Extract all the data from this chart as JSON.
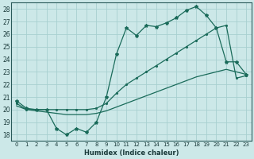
{
  "xlabel": "Humidex (Indice chaleur)",
  "bg_color": "#cce8e8",
  "grid_color": "#a8d0d0",
  "line_color": "#1a6b5a",
  "xlim": [
    -0.5,
    23.5
  ],
  "ylim": [
    17.5,
    28.5
  ],
  "yticks": [
    18,
    19,
    20,
    21,
    22,
    23,
    24,
    25,
    26,
    27,
    28
  ],
  "xticks": [
    0,
    1,
    2,
    3,
    4,
    5,
    6,
    7,
    8,
    9,
    10,
    11,
    12,
    13,
    14,
    15,
    16,
    17,
    18,
    19,
    20,
    21,
    22,
    23
  ],
  "line_wavy_x": [
    0,
    1,
    2,
    3,
    4,
    5,
    6,
    7,
    8,
    9,
    10,
    11,
    12,
    13,
    14,
    15,
    16,
    17,
    18,
    19,
    20,
    21,
    22,
    23
  ],
  "line_wavy_y": [
    20.7,
    20.1,
    20.0,
    20.0,
    18.5,
    18.0,
    18.5,
    18.2,
    19.0,
    21.0,
    24.4,
    26.5,
    25.9,
    26.7,
    26.6,
    26.9,
    27.3,
    27.9,
    28.2,
    27.5,
    26.5,
    23.8,
    23.8,
    22.8
  ],
  "line_upper_x": [
    0,
    1,
    2,
    3,
    4,
    5,
    6,
    7,
    8,
    9,
    10,
    11,
    12,
    13,
    14,
    15,
    16,
    17,
    18,
    19,
    20,
    21,
    22,
    23
  ],
  "line_upper_y": [
    20.5,
    20.0,
    20.0,
    20.0,
    20.0,
    20.0,
    20.0,
    20.0,
    20.1,
    20.5,
    21.3,
    22.0,
    22.5,
    23.0,
    23.5,
    24.0,
    24.5,
    25.0,
    25.5,
    26.0,
    26.5,
    26.7,
    22.5,
    22.7
  ],
  "line_diag_x": [
    0,
    1,
    2,
    3,
    4,
    5,
    6,
    7,
    8,
    9,
    10,
    11,
    12,
    13,
    14,
    15,
    16,
    17,
    18,
    19,
    20,
    21,
    22,
    23
  ],
  "line_diag_y": [
    20.3,
    20.0,
    19.9,
    19.8,
    19.7,
    19.6,
    19.6,
    19.6,
    19.7,
    19.9,
    20.2,
    20.5,
    20.8,
    21.1,
    21.4,
    21.7,
    22.0,
    22.3,
    22.6,
    22.8,
    23.0,
    23.2,
    23.0,
    22.8
  ]
}
